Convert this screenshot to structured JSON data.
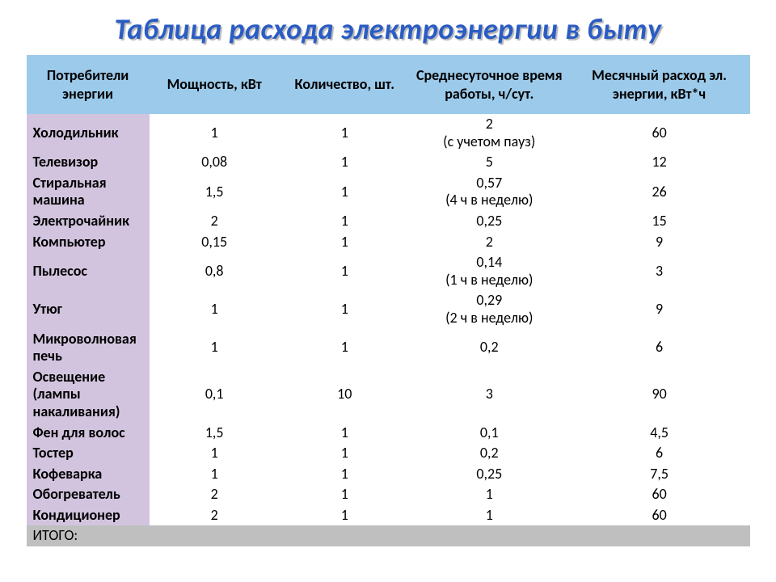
{
  "title": {
    "text": "Таблица расхода электроэнергии в быту",
    "color": "#2a5cc4",
    "shadow_color": "#b8b8b8"
  },
  "table": {
    "header_bg": "#9ccaea",
    "label_col_bg": "#d2c4de",
    "total_bg": "#bfbfbf",
    "text_color": "#000000",
    "col_widths_pct": [
      17,
      18,
      18,
      22,
      25
    ],
    "columns": [
      "Потребители энергии",
      "Мощность, кВт",
      "Количество, шт.",
      "Среднесуточное время работы, ч/сут.",
      "Месячный расход эл. энергии, кВт*ч"
    ],
    "rows": [
      {
        "label": "Холодильник",
        "power": "1",
        "qty": "1",
        "time": "2\n(с учетом пауз)",
        "month": "60"
      },
      {
        "label": "Телевизор",
        "power": "0,08",
        "qty": "1",
        "time": "5",
        "month": "12"
      },
      {
        "label": "Стиральная машина",
        "power": "1,5",
        "qty": "1",
        "time": "0,57\n(4 ч в неделю)",
        "month": "26"
      },
      {
        "label": "Электрочайник",
        "power": "2",
        "qty": "1",
        "time": "0,25",
        "month": "15"
      },
      {
        "label": "Компьютер",
        "power": "0,15",
        "qty": "1",
        "time": "2",
        "month": "9"
      },
      {
        "label": "Пылесос",
        "power": "0,8",
        "qty": "1",
        "time": "0,14\n(1 ч в неделю)",
        "month": "3"
      },
      {
        "label": "Утюг",
        "power": "1",
        "qty": "1",
        "time": "0,29\n(2 ч в неделю)",
        "month": "9"
      },
      {
        "label": "Микроволновая печь",
        "power": "1",
        "qty": "1",
        "time": "0,2",
        "month": "6"
      },
      {
        "label": "Освещение (лампы накаливания)",
        "power": "0,1",
        "qty": "10",
        "time": "3",
        "month": "90"
      },
      {
        "label": "Фен для волос",
        "power": "1,5",
        "qty": "1",
        "time": "0,1",
        "month": "4,5"
      },
      {
        "label": "Тостер",
        "power": "1",
        "qty": "1",
        "time": "0,2",
        "month": "6"
      },
      {
        "label": "Кофеварка",
        "power": "1",
        "qty": "1",
        "time": "0,25",
        "month": "7,5"
      },
      {
        "label": "Обогреватель",
        "power": "2",
        "qty": "1",
        "time": "1",
        "month": "60"
      },
      {
        "label": "Кондиционер",
        "power": "2",
        "qty": "1",
        "time": "1",
        "month": "60"
      }
    ],
    "total_label": "ИТОГО:"
  }
}
